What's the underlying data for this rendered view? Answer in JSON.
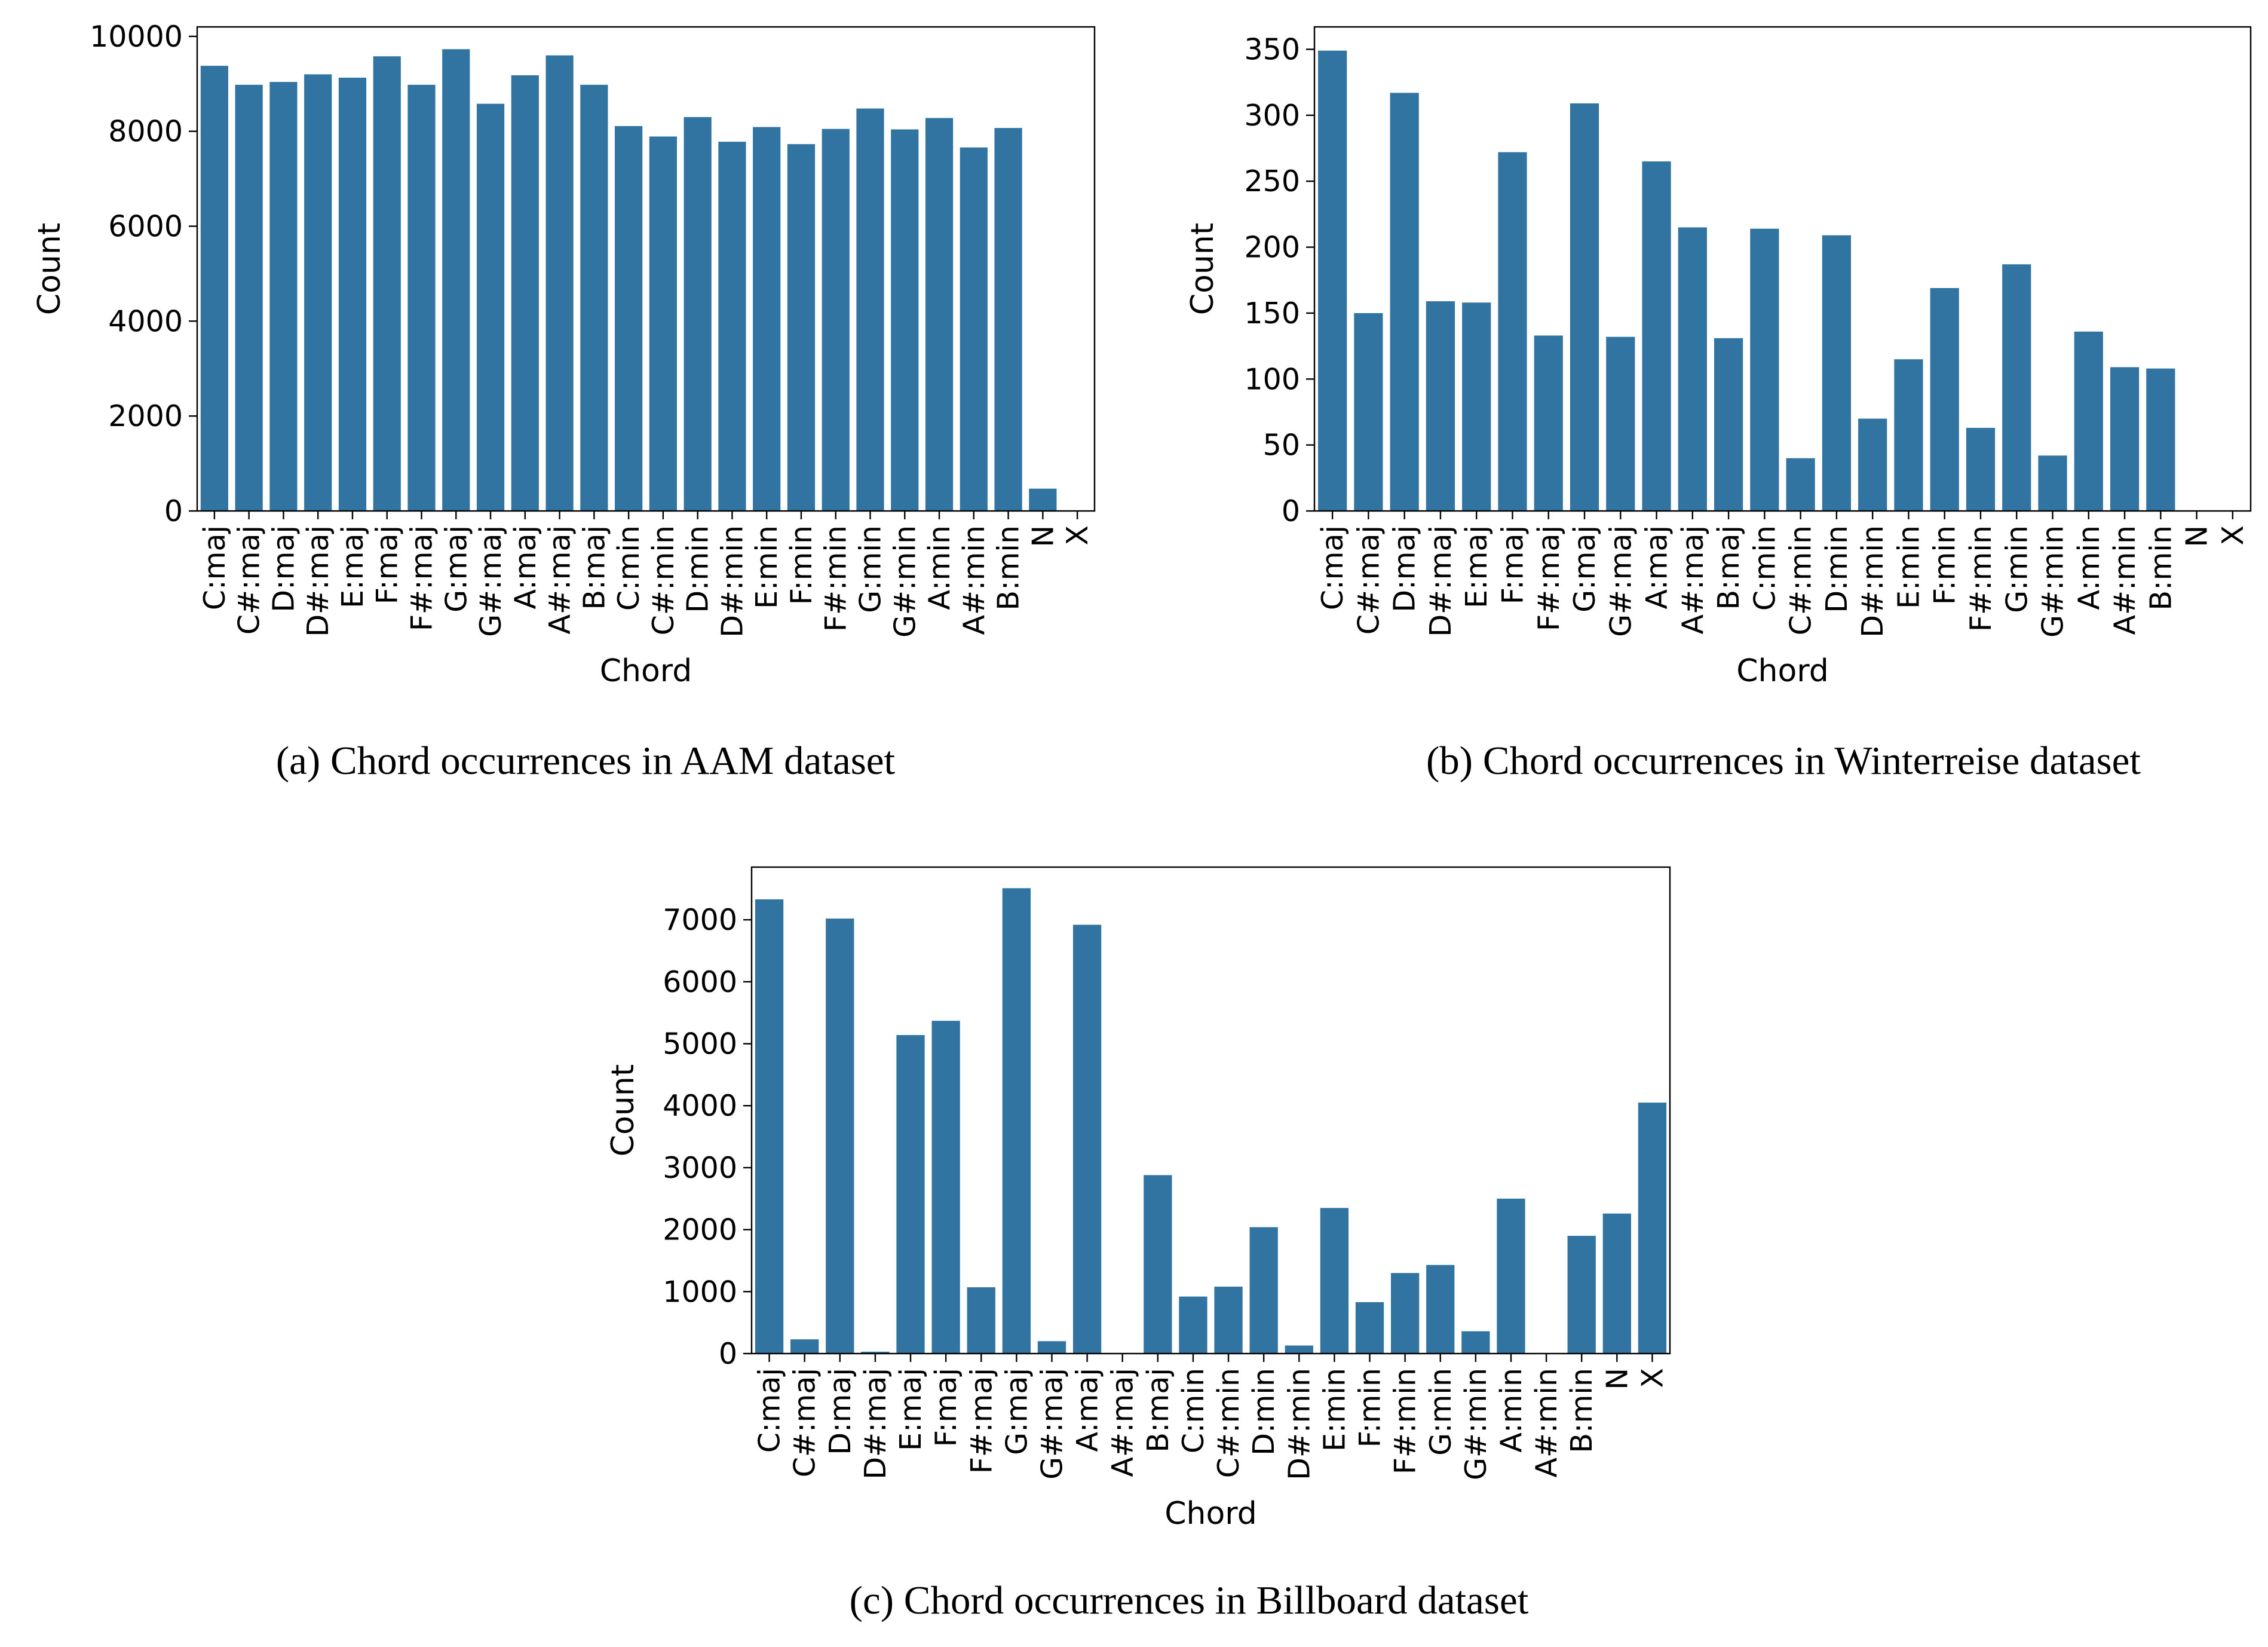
{
  "chart_data": [
    {
      "type": "bar",
      "caption": "(a) Chord occurrences in AAM dataset",
      "xlabel": "Chord",
      "ylabel": "Count",
      "ylim": [
        0,
        10200
      ],
      "yticks": [
        0,
        2000,
        4000,
        6000,
        8000,
        10000
      ],
      "bar_color": "#3274a1",
      "categories": [
        "C:maj",
        "C#:maj",
        "D:maj",
        "D#:maj",
        "E:maj",
        "F:maj",
        "F#:maj",
        "G:maj",
        "G#:maj",
        "A:maj",
        "A#:maj",
        "B:maj",
        "C:min",
        "C#:min",
        "D:min",
        "D#:min",
        "E:min",
        "F:min",
        "F#:min",
        "G:min",
        "G#:min",
        "A:min",
        "A#:min",
        "B:min",
        "N",
        "X"
      ],
      "values": [
        9380,
        8980,
        9040,
        9200,
        9130,
        9580,
        8980,
        9730,
        8580,
        9180,
        9600,
        8980,
        8110,
        7890,
        8300,
        7780,
        8090,
        7730,
        8050,
        8480,
        8040,
        8280,
        7660,
        8070,
        470,
        0
      ]
    },
    {
      "type": "bar",
      "caption": "(b) Chord occurrences in Winterreise dataset",
      "xlabel": "Chord",
      "ylabel": "Count",
      "ylim": [
        0,
        367
      ],
      "yticks": [
        0,
        50,
        100,
        150,
        200,
        250,
        300,
        350
      ],
      "bar_color": "#3274a1",
      "categories": [
        "C:maj",
        "C#:maj",
        "D:maj",
        "D#:maj",
        "E:maj",
        "F:maj",
        "F#:maj",
        "G:maj",
        "G#:maj",
        "A:maj",
        "A#:maj",
        "B:maj",
        "C:min",
        "C#:min",
        "D:min",
        "D#:min",
        "E:min",
        "F:min",
        "F#:min",
        "G:min",
        "G#:min",
        "A:min",
        "A#:min",
        "B:min",
        "N",
        "X"
      ],
      "values": [
        349,
        150,
        317,
        159,
        158,
        272,
        133,
        309,
        132,
        265,
        215,
        131,
        214,
        40,
        209,
        70,
        115,
        169,
        63,
        187,
        42,
        136,
        109,
        108,
        0,
        0
      ]
    },
    {
      "type": "bar",
      "caption": "(c) Chord occurrences in Billboard dataset",
      "xlabel": "Chord",
      "ylabel": "Count",
      "ylim": [
        0,
        7850
      ],
      "yticks": [
        0,
        1000,
        2000,
        3000,
        4000,
        5000,
        6000,
        7000
      ],
      "bar_color": "#3274a1",
      "categories": [
        "C:maj",
        "C#:maj",
        "D:maj",
        "D#:maj",
        "E:maj",
        "F:maj",
        "F#:maj",
        "G:maj",
        "G#:maj",
        "A:maj",
        "A#:maj",
        "B:maj",
        "C:min",
        "C#:min",
        "D:min",
        "D#:min",
        "E:min",
        "F:min",
        "F#:min",
        "G:min",
        "G#:min",
        "A:min",
        "A#:min",
        "B:min",
        "N",
        "X"
      ],
      "values": [
        7330,
        230,
        7020,
        30,
        5140,
        5370,
        1070,
        7510,
        200,
        6920,
        10,
        2880,
        920,
        1080,
        2040,
        130,
        2350,
        830,
        1300,
        1430,
        360,
        2500,
        10,
        1900,
        2260,
        4050
      ]
    }
  ]
}
